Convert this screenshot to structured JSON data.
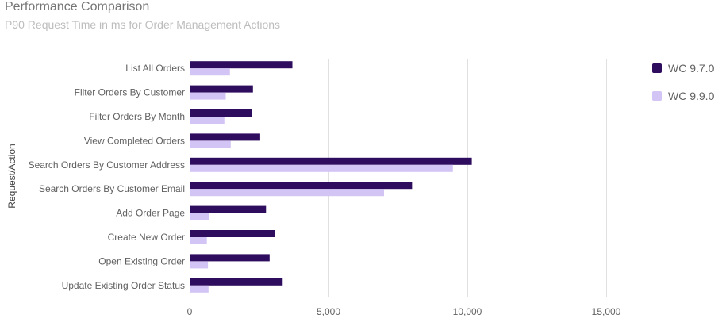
{
  "chart_data": {
    "type": "bar",
    "orientation": "horizontal",
    "title": "Performance Comparison",
    "subtitle": "P90 Request Time in ms for Order Management Actions",
    "xlabel": "",
    "ylabel": "Request/Action",
    "xlim": [
      0,
      19000
    ],
    "xticks": [
      0,
      5000,
      10000,
      15000
    ],
    "xtick_labels": [
      "0",
      "5,000",
      "10,000",
      "15,000"
    ],
    "grid": true,
    "legend_position": "right",
    "categories": [
      "List All Orders",
      "Filter Orders By Customer",
      "Filter Orders By Month",
      "View Completed Orders",
      "Search Orders By Customer Address",
      "Search Orders By Customer Email",
      "Add Order Page",
      "Create New Order",
      "Open Existing Order",
      "Update Existing Order Status"
    ],
    "series": [
      {
        "name": "WC 9.7.0",
        "color": "#2e0c5e",
        "values": [
          3700,
          2280,
          2230,
          2540,
          10160,
          8010,
          2750,
          3070,
          2880,
          3350
        ]
      },
      {
        "name": "WC 9.9.0",
        "color": "#d2c4f4",
        "values": [
          1450,
          1300,
          1250,
          1480,
          9480,
          7000,
          700,
          620,
          660,
          680
        ]
      }
    ]
  }
}
